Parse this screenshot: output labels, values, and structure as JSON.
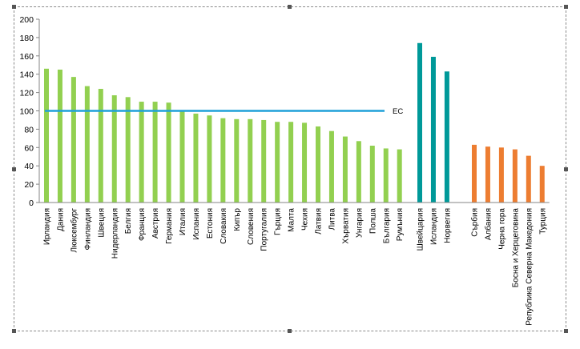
{
  "chart_data": {
    "type": "bar",
    "title": "",
    "xlabel": "",
    "ylabel": "",
    "ylim": [
      0,
      200
    ],
    "yticks": [
      0,
      20,
      40,
      60,
      80,
      100,
      120,
      140,
      160,
      180,
      200
    ],
    "grid": false,
    "reference_line": {
      "label": "ЕС",
      "value": 100,
      "color": "#1fa0d8"
    },
    "groups": [
      {
        "color": "#92d050",
        "categories": [
          "Ирландия",
          "Дания",
          "Люксембург",
          "Финландия",
          "Швеция",
          "Нидерландия",
          "Белгия",
          "Франция",
          "Австрия",
          "Германия",
          "Италия",
          "Испания",
          "Естония",
          "Словакия",
          "Кипър",
          "Словения",
          "Португалия",
          "Гърция",
          "Малта",
          "Чехия",
          "Латвия",
          "Литва",
          "Хърватия",
          "Унгария",
          "Полша",
          "България",
          "Румъния"
        ],
        "values": [
          146,
          145,
          137,
          127,
          124,
          117,
          115,
          110,
          110,
          109,
          100,
          97,
          95,
          92,
          91,
          91,
          90,
          88,
          88,
          87,
          83,
          78,
          72,
          67,
          62,
          59,
          58
        ]
      },
      {
        "color": "#009999",
        "categories": [
          "Швейцария",
          "Исландия",
          "Норвегия"
        ],
        "values": [
          174,
          159,
          143
        ]
      },
      {
        "color": "#ed7d31",
        "categories": [
          "Сърбия",
          "Албания",
          "Черна гора",
          "Босна и Херцеговина",
          "Република Северна Македония",
          "Турция"
        ],
        "values": [
          63,
          61,
          60,
          58,
          51,
          40
        ]
      }
    ]
  }
}
